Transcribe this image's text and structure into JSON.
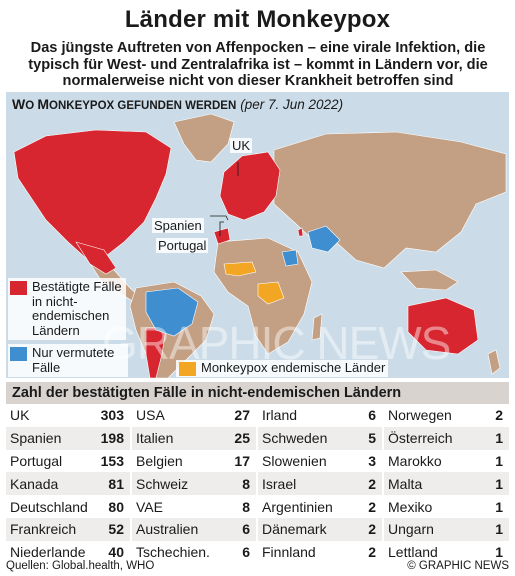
{
  "header": {
    "title": "Länder mit Monkeypox",
    "subtitle": "Das jüngste Auftreten von Affenpocken – eine virale Infektion, die typisch für West- und Zentralafrika ist – kommt in Ländern vor, die normalerweise nicht von dieser Krankheit betroffen sind"
  },
  "map": {
    "heading": "WO MONKEYPOX GEFUNDEN WERDEN",
    "heading_first": "W",
    "heading_rest_sc": "O ",
    "heading_M": "M",
    "heading_onkeypox_sc": "ONKEYPOX GEFUNDEN WERDEN",
    "date": "(per 7. Jun 2022)",
    "labels": {
      "uk": "UK",
      "spain": "Spanien",
      "portugal": "Portugal"
    },
    "legend": {
      "confirmed": "Bestätigte Fälle in nicht-endemischen Ländern",
      "suspected": "Nur vermutete Fälle",
      "endemic": "Monkeypox endemische Länder"
    },
    "colors": {
      "confirmed": "#d7262f",
      "suspected": "#3f8fd0",
      "endemic": "#f3a623",
      "land": "#c3a084",
      "sea": "#cbdce8"
    }
  },
  "table": {
    "title": "Zahl der bestätigten Fälle in nicht-endemischen Ländern",
    "rows": [
      [
        [
          "UK",
          "303"
        ],
        [
          "USA",
          "27"
        ],
        [
          "Irland",
          "6"
        ],
        [
          "Norwegen",
          "2"
        ]
      ],
      [
        [
          "Spanien",
          "198"
        ],
        [
          "Italien",
          "25"
        ],
        [
          "Schweden",
          "5"
        ],
        [
          "Österreich",
          "1"
        ]
      ],
      [
        [
          "Portugal",
          "153"
        ],
        [
          "Belgien",
          "17"
        ],
        [
          "Slowenien",
          "3"
        ],
        [
          "Marokko",
          "1"
        ]
      ],
      [
        [
          "Kanada",
          "81"
        ],
        [
          "Schweiz",
          "8"
        ],
        [
          "Israel",
          "2"
        ],
        [
          "Malta",
          "1"
        ]
      ],
      [
        [
          "Deutschland",
          "80"
        ],
        [
          "VAE",
          "8"
        ],
        [
          "Argentinien",
          "2"
        ],
        [
          "Mexiko",
          "1"
        ]
      ],
      [
        [
          "Frankreich",
          "52"
        ],
        [
          "Australien",
          "6"
        ],
        [
          "Dänemark",
          "2"
        ],
        [
          "Ungarn",
          "1"
        ]
      ],
      [
        [
          "Niederlande",
          "40"
        ],
        [
          "Tschechien.",
          "6"
        ],
        [
          "Finnland",
          "2"
        ],
        [
          "Lettland",
          "1"
        ]
      ]
    ]
  },
  "footer": {
    "source": "Quellen: Global.health, WHO",
    "credit": "© GRAPHIC NEWS"
  },
  "watermark": "GRAPHIC NEWS"
}
